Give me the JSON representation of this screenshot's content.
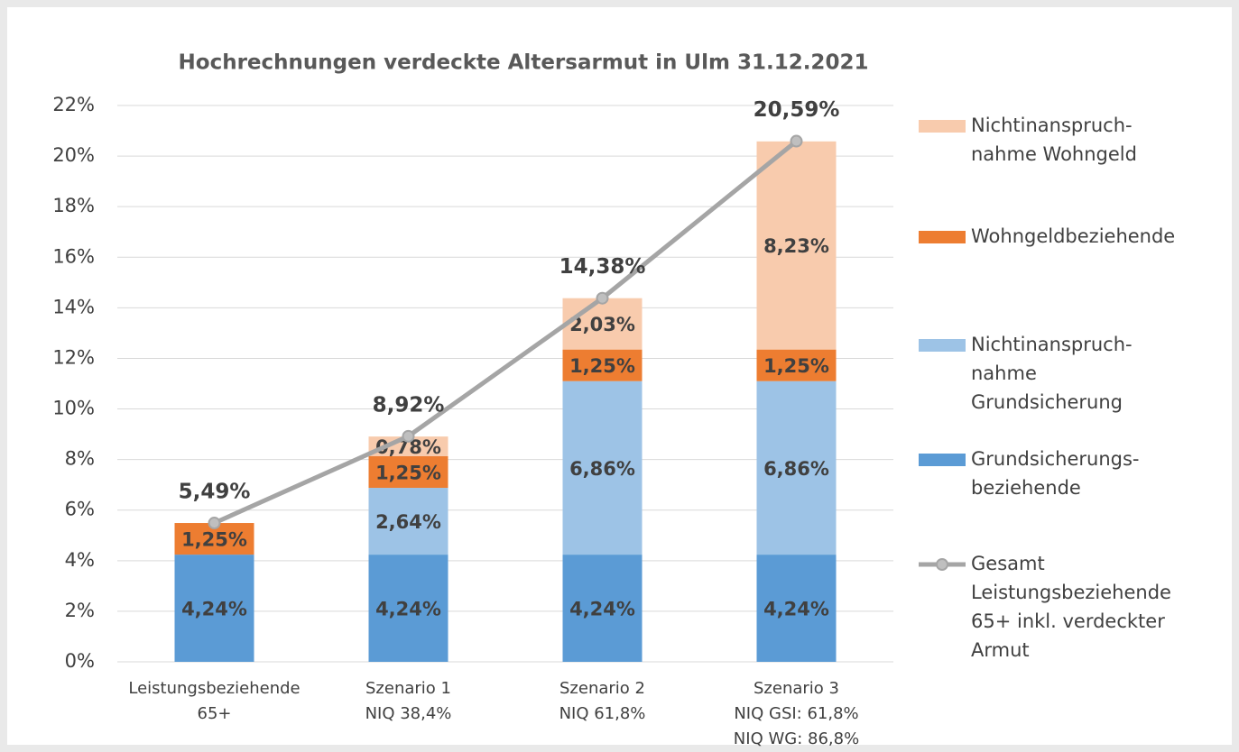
{
  "chart_data": {
    "type": "stacked_bar_line",
    "title": "Hochrechnungen verdeckte Altersarmut in Ulm 31.12.2021",
    "categories": [
      [
        "Leistungsbeziehende",
        "65+"
      ],
      [
        "Szenario 1",
        "NIQ 38,4%"
      ],
      [
        "Szenario 2",
        "NIQ 61,8%"
      ],
      [
        "Szenario 3",
        "NIQ GSI: 61,8%",
        "NIQ WG: 86,8%"
      ]
    ],
    "series": [
      {
        "name": [
          "Grundsicherungs-",
          "beziehende"
        ],
        "color": "#5b9bd5",
        "values": [
          4.24,
          4.24,
          4.24,
          4.24
        ],
        "value_labels": [
          "4,24%",
          "4,24%",
          "4,24%",
          "4,24%"
        ]
      },
      {
        "name": [
          "Nichtinanspruch-",
          "nahme",
          "Grundsicherung"
        ],
        "color": "#9dc3e6",
        "values": [
          null,
          2.64,
          6.86,
          6.86
        ],
        "value_labels": [
          null,
          "2,64%",
          "6,86%",
          "6,86%"
        ]
      },
      {
        "name": [
          "Wohngeldbeziehende"
        ],
        "color": "#ed7d31",
        "values": [
          1.25,
          1.25,
          1.25,
          1.25
        ],
        "value_labels": [
          "1,25%",
          "1,25%",
          "1,25%",
          "1,25%"
        ]
      },
      {
        "name": [
          "Nichtinanspruch-",
          "nahme Wohngeld"
        ],
        "color": "#f8cbad",
        "values": [
          null,
          0.78,
          2.03,
          8.23
        ],
        "value_labels": [
          null,
          "0,78%",
          "2,03%",
          "8,23%"
        ]
      },
      {
        "name": [
          "Gesamt",
          "Leistungsbeziehende",
          "65+ inkl. verdeckter",
          "Armut"
        ],
        "color": "#a5a5a5",
        "type": "line",
        "values": [
          5.49,
          8.92,
          14.38,
          20.59
        ],
        "value_labels": [
          "5,49%",
          "8,92%",
          "14,38%",
          "20,59%"
        ]
      }
    ],
    "ylim": [
      0,
      22
    ],
    "yticks": [
      {
        "value": 0,
        "label": "0%"
      },
      {
        "value": 2,
        "label": "2%"
      },
      {
        "value": 4,
        "label": "4%"
      },
      {
        "value": 6,
        "label": "6%"
      },
      {
        "value": 8,
        "label": "8%"
      },
      {
        "value": 10,
        "label": "10%"
      },
      {
        "value": 12,
        "label": "12%"
      },
      {
        "value": 14,
        "label": "14%"
      },
      {
        "value": 16,
        "label": "16%"
      },
      {
        "value": 18,
        "label": "18%"
      },
      {
        "value": 20,
        "label": "20%"
      },
      {
        "value": 22,
        "label": "22%"
      }
    ],
    "grid": true,
    "legend": "right"
  }
}
